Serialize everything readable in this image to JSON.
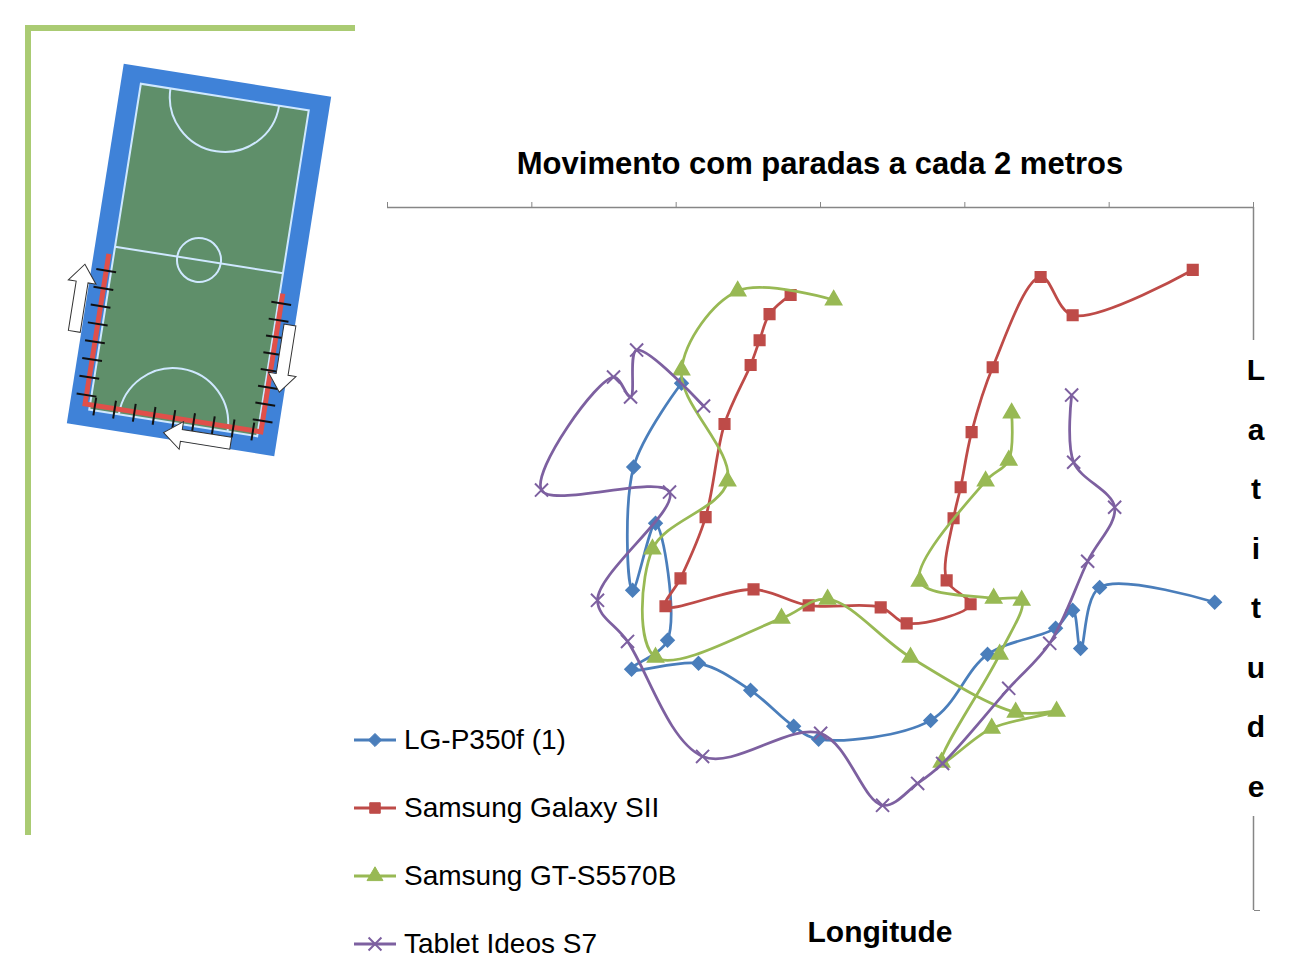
{
  "chart_data": {
    "type": "line",
    "title": "Movimento com paradas a cada 2 metros",
    "x_label": "Longitude",
    "y_label": "Latitude",
    "xlim": [
      0,
      6
    ],
    "xticks": [
      0,
      1,
      2,
      3,
      4,
      5,
      6
    ],
    "ylim": [
      0,
      2.5
    ],
    "yticks": [
      0,
      1,
      2
    ],
    "tick_labels": false,
    "legend": "bottom-left",
    "series": [
      {
        "name": "LG-P350f (1)",
        "color": "#4a7ebb",
        "marker": "diamond",
        "x": [
          2.037,
          1.705,
          1.698,
          1.857,
          1.94,
          1.691,
          2.155,
          2.516,
          2.814,
          2.987,
          3.763,
          4.158,
          4.629,
          4.747,
          4.802,
          4.934,
          5.731
        ],
        "values": [
          1.875,
          1.577,
          1.139,
          1.377,
          0.961,
          0.858,
          0.879,
          0.783,
          0.655,
          0.609,
          0.676,
          0.911,
          1.004,
          1.068,
          0.932,
          1.149,
          1.096
        ]
      },
      {
        "name": "Samsung Galaxy SII",
        "color": "#be4b48",
        "marker": "square",
        "x": [
          2.793,
          2.647,
          2.578,
          2.516,
          2.335,
          2.204,
          2.03,
          1.926,
          2.536,
          2.918,
          3.417,
          3.597,
          4.04,
          3.874,
          3.922,
          3.971,
          4.047,
          4.193,
          4.525,
          4.747,
          5.579
        ],
        "values": [
          2.189,
          2.121,
          2.028,
          1.94,
          1.73,
          1.399,
          1.181,
          1.082,
          1.142,
          1.085,
          1.078,
          1.021,
          1.089,
          1.174,
          1.395,
          1.505,
          1.701,
          1.932,
          2.253,
          2.117,
          2.278
        ]
      },
      {
        "name": "Samsung GT-S5570B",
        "color": "#98b954",
        "marker": "triangle",
        "x": [
          3.091,
          2.426,
          2.037,
          2.356,
          1.836,
          1.857,
          2.73,
          3.049,
          3.624,
          4.352,
          4.636,
          4.186,
          3.839,
          4.241,
          4.394,
          4.2,
          3.687,
          4.144,
          4.304,
          4.324
        ],
        "values": [
          2.171,
          2.203,
          1.922,
          1.527,
          1.285,
          0.9,
          1.039,
          1.107,
          0.9,
          0.705,
          0.708,
          0.648,
          0.527,
          0.911,
          1.103,
          1.11,
          1.171,
          1.527,
          1.601,
          1.769
        ]
      },
      {
        "name": "Tablet Ideos S7",
        "color": "#7d60a0",
        "marker": "x",
        "x": [
          2.19,
          1.726,
          1.684,
          1.566,
          1.067,
          1.954,
          1.455,
          1.663,
          2.183,
          3.001,
          3.43,
          3.673,
          3.846,
          4.304,
          4.588,
          4.851,
          5.038,
          4.754,
          4.74
        ],
        "values": [
          1.794,
          1.993,
          1.826,
          1.897,
          1.495,
          1.488,
          1.103,
          0.957,
          0.548,
          0.63,
          0.374,
          0.452,
          0.523,
          0.79,
          0.95,
          1.242,
          1.434,
          1.594,
          1.833
        ]
      }
    ]
  }
}
